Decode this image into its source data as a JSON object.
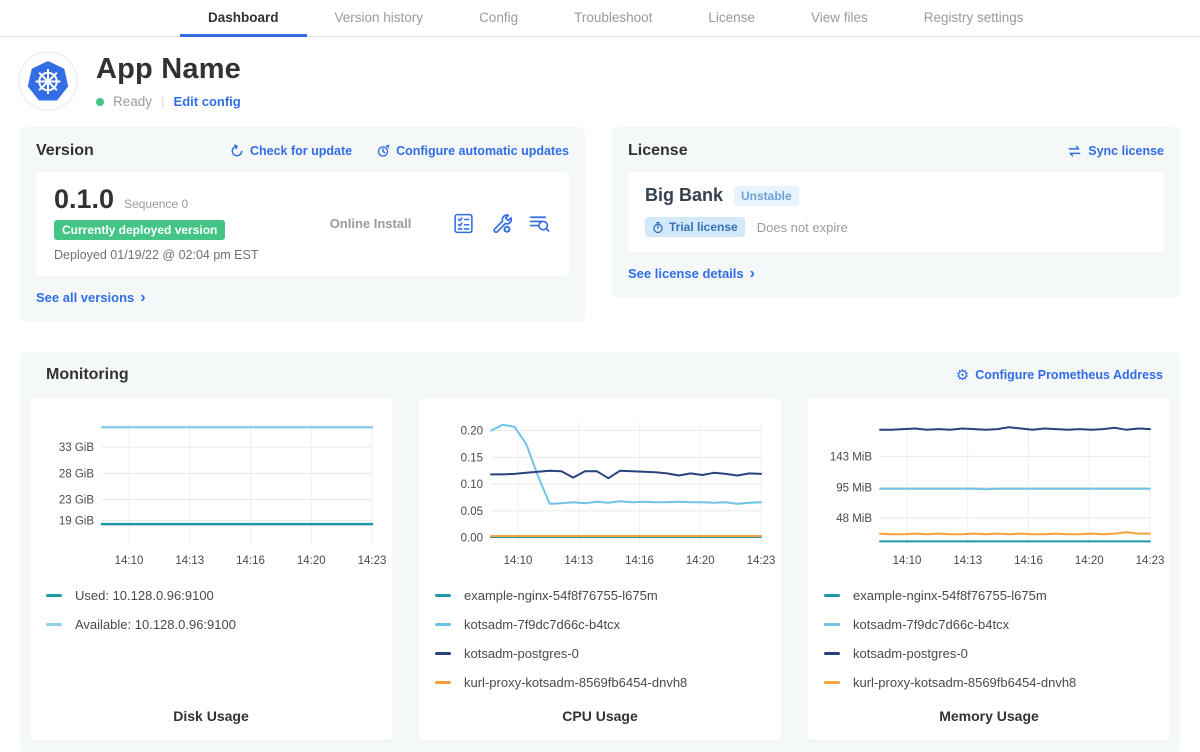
{
  "nav": {
    "tabs": [
      {
        "label": "Dashboard"
      },
      {
        "label": "Version history"
      },
      {
        "label": "Config"
      },
      {
        "label": "Troubleshoot"
      },
      {
        "label": "License"
      },
      {
        "label": "View files"
      },
      {
        "label": "Registry settings"
      }
    ]
  },
  "app_header": {
    "name": "App Name",
    "status": "Ready",
    "edit_config_label": "Edit config"
  },
  "version_card": {
    "title": "Version",
    "check_update_label": "Check for update",
    "configure_updates_label": "Configure automatic updates",
    "version_number": "0.1.0",
    "sequence_label": "Sequence 0",
    "deployed_badge": "Currently deployed version",
    "deployed_at": "Deployed 01/19/22 @ 02:04 pm EST",
    "install_type": "Online Install",
    "see_all_label": "See all versions",
    "chevron": "›"
  },
  "license_card": {
    "title": "License",
    "sync_label": "Sync license",
    "customer_name": "Big Bank",
    "channel_badge": "Unstable",
    "trial_badge": "Trial license",
    "expiry_text": "Does not expire",
    "see_details_label": "See license details",
    "chevron": "›"
  },
  "monitoring": {
    "title": "Monitoring",
    "configure_prometheus_label": "Configure Prometheus Address"
  },
  "icons": {
    "gear_glyph": "⚙"
  },
  "colors": {
    "accent_blue": "#326de6",
    "success_green": "#44c585",
    "teal_series": "#1d99a8",
    "lightblue_series": "#71c3e6",
    "navy_series": "#29427e",
    "orange_series": "#f7a13c",
    "panel_bg": "#f4f8f9"
  },
  "chart_data": [
    {
      "type": "line",
      "title": "Disk Usage",
      "x_ticks": [
        "14:10",
        "14:13",
        "14:16",
        "14:20",
        "14:23"
      ],
      "y_ticks": [
        "33 GiB",
        "28 GiB",
        "23 GiB",
        "19 GiB"
      ],
      "y_tick_values": [
        33,
        28,
        23,
        19
      ],
      "ylim": [
        14.5,
        37.8
      ],
      "stroke_width": 2.5,
      "series": [
        {
          "name": "Used: 10.128.0.96:9100",
          "color": "#1d99a8",
          "values": [
            18.3,
            18.3,
            18.3,
            18.3,
            18.3,
            18.3,
            18.3,
            18.3,
            18.3,
            18.3,
            18.3,
            18.3,
            18.3,
            18.3,
            18.3,
            18.3,
            18.3,
            18.3,
            18.3,
            18.3,
            18.3,
            18.3,
            18.3,
            18.3
          ]
        },
        {
          "name": "Available: 10.128.0.96:9100",
          "color": "#8fcfed",
          "values": [
            36.8,
            36.8,
            36.8,
            36.8,
            36.8,
            36.8,
            36.8,
            36.8,
            36.8,
            36.8,
            36.8,
            36.8,
            36.8,
            36.8,
            36.8,
            36.8,
            36.8,
            36.8,
            36.8,
            36.8,
            36.8,
            36.8,
            36.8,
            36.8
          ]
        }
      ]
    },
    {
      "type": "line",
      "title": "CPU Usage",
      "x_ticks": [
        "14:10",
        "14:13",
        "14:16",
        "14:20",
        "14:23"
      ],
      "y_ticks": [
        "0.20",
        "0.15",
        "0.10",
        "0.05",
        "0.00"
      ],
      "y_tick_values": [
        0.2,
        0.15,
        0.1,
        0.05,
        0.0
      ],
      "ylim": [
        -0.012,
        0.216
      ],
      "stroke_width": 2,
      "series": [
        {
          "name": "example-nginx-54f8f76755-l675m",
          "color": "#1d99a8",
          "values": [
            0.001,
            0.001,
            0.001,
            0.001,
            0.001,
            0.001,
            0.001,
            0.001,
            0.001,
            0.001,
            0.001,
            0.001,
            0.001,
            0.001,
            0.001,
            0.001,
            0.001,
            0.001,
            0.001,
            0.001,
            0.001,
            0.001,
            0.001,
            0.001
          ]
        },
        {
          "name": "kotsadm-7f9dc7d66c-b4tcx",
          "color": "#71c3e6",
          "values": [
            0.2,
            0.211,
            0.207,
            0.175,
            0.115,
            0.063,
            0.064,
            0.066,
            0.064,
            0.067,
            0.065,
            0.068,
            0.066,
            0.067,
            0.066,
            0.066,
            0.067,
            0.066,
            0.066,
            0.065,
            0.066,
            0.063,
            0.065,
            0.066
          ]
        },
        {
          "name": "kotsadm-postgres-0",
          "color": "#29427e",
          "values": [
            0.118,
            0.118,
            0.119,
            0.121,
            0.123,
            0.125,
            0.124,
            0.112,
            0.124,
            0.124,
            0.111,
            0.125,
            0.124,
            0.123,
            0.122,
            0.12,
            0.116,
            0.12,
            0.117,
            0.121,
            0.119,
            0.116,
            0.12,
            0.119
          ]
        },
        {
          "name": "kurl-proxy-kotsadm-8569fb6454-dnvh8",
          "color": "#f7a13c",
          "values": [
            0.003,
            0.003,
            0.003,
            0.003,
            0.003,
            0.003,
            0.003,
            0.003,
            0.003,
            0.003,
            0.003,
            0.003,
            0.003,
            0.003,
            0.003,
            0.003,
            0.003,
            0.003,
            0.003,
            0.003,
            0.003,
            0.003,
            0.003,
            0.003
          ]
        }
      ]
    },
    {
      "type": "line",
      "title": "Memory Usage",
      "x_ticks": [
        "14:10",
        "14:13",
        "14:16",
        "14:20",
        "14:23"
      ],
      "y_ticks": [
        "143 MiB",
        "95 MiB",
        "48 MiB"
      ],
      "y_tick_values": [
        143,
        95,
        48
      ],
      "ylim": [
        8,
        196
      ],
      "stroke_width": 2,
      "series": [
        {
          "name": "example-nginx-54f8f76755-l675m",
          "color": "#1d99a8",
          "values": [
            12,
            12,
            12,
            12,
            12,
            12,
            12,
            12,
            12,
            12,
            12,
            12,
            12,
            12,
            12,
            12,
            12,
            12,
            12,
            12,
            12,
            12,
            12,
            12
          ]
        },
        {
          "name": "kotsadm-7f9dc7d66c-b4tcx",
          "color": "#71c3e6",
          "values": [
            93,
            93,
            93,
            93,
            93,
            93,
            93,
            93,
            93,
            92.5,
            93,
            93,
            93,
            93,
            93,
            93,
            93,
            93,
            93,
            93,
            93,
            93,
            93,
            93
          ]
        },
        {
          "name": "kotsadm-postgres-0",
          "color": "#29427e",
          "values": [
            184,
            184,
            185,
            186,
            184,
            185,
            184,
            186,
            185,
            184,
            185,
            188,
            186,
            184,
            186,
            185,
            184,
            185,
            184,
            185,
            187,
            184,
            186,
            185
          ]
        },
        {
          "name": "kurl-proxy-kotsadm-8569fb6454-dnvh8",
          "color": "#f7a13c",
          "values": [
            24,
            23,
            23,
            24,
            23,
            24,
            23,
            23,
            24,
            23,
            24,
            23,
            24,
            23,
            23,
            24,
            23,
            23,
            24,
            23,
            24,
            26,
            24,
            24
          ]
        }
      ]
    }
  ]
}
